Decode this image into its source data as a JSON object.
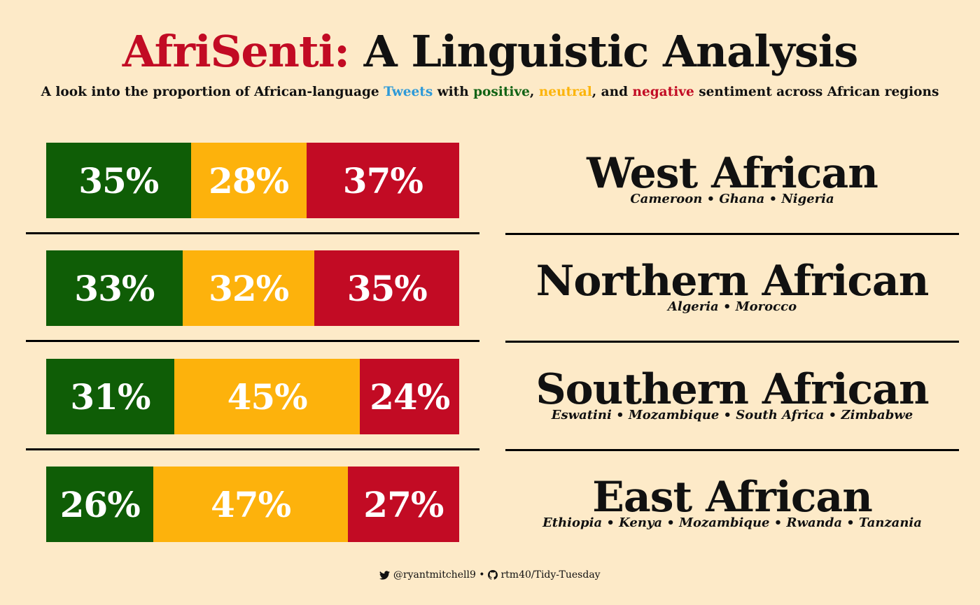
{
  "title": {
    "brand": "AfriSenti:",
    "rest": "A Linguistic Analysis"
  },
  "subtitle": {
    "part1": "A look into the proportion of African-language ",
    "tweets": "Tweets",
    "part2": " with ",
    "positive": "positive",
    "comma1": ", ",
    "neutral": "neutral",
    "part3": ", and ",
    "negative": "negative",
    "part4": " sentiment across African regions"
  },
  "colors": {
    "background": "#fdeac8",
    "positive": "#0f5d06",
    "neutral": "#fdb20c",
    "negative": "#c20b24",
    "tweets": "#2e9ad8"
  },
  "chart_data": {
    "type": "bar",
    "stacked": true,
    "orientation": "horizontal",
    "unit": "%",
    "categories": [
      "West African",
      "Northern African",
      "Southern African",
      "East African"
    ],
    "series": [
      {
        "name": "positive",
        "values": [
          35,
          33,
          31,
          26
        ],
        "labels": [
          "35%",
          "33%",
          "31%",
          "26%"
        ]
      },
      {
        "name": "neutral",
        "values": [
          28,
          32,
          45,
          47
        ],
        "labels": [
          "28%",
          "32%",
          "45%",
          "47%"
        ]
      },
      {
        "name": "negative",
        "values": [
          37,
          35,
          24,
          27
        ],
        "labels": [
          "37%",
          "35%",
          "24%",
          "27%"
        ]
      }
    ],
    "regions": [
      {
        "name": "West African",
        "countries": "Cameroon • Ghana • Nigeria"
      },
      {
        "name": "Northern African",
        "countries": "Algeria • Morocco"
      },
      {
        "name": "Southern African",
        "countries": "Eswatini • Mozambique • South Africa • Zimbabwe"
      },
      {
        "name": "East African",
        "countries": "Ethiopia • Kenya • Mozambique • Rwanda • Tanzania"
      }
    ]
  },
  "footer": {
    "icon1": "twitter-bird-icon",
    "handle": "@ryantmitchell9",
    "separator": " • ",
    "icon2": "github-icon",
    "repo": "rtm40/Tidy-Tuesday"
  }
}
